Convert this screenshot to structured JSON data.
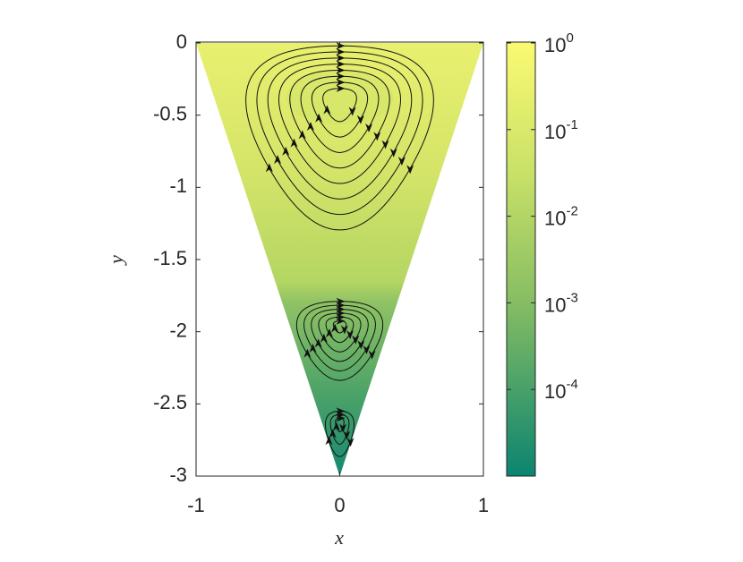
{
  "chart_data": {
    "type": "streamline",
    "x_label": "x",
    "y_label": "y",
    "xlim": [
      -1,
      1
    ],
    "xticks": [
      -1,
      0,
      1
    ],
    "ylim": [
      -3,
      0
    ],
    "yticks": [
      0,
      -0.5,
      -1,
      -1.5,
      -2,
      -2.5,
      -3
    ],
    "colorbar": {
      "scale": "log",
      "clim": [
        1e-05,
        1
      ],
      "ticks": [
        {
          "value": 1,
          "label": "10",
          "exponent": "0"
        },
        {
          "value": 0.1,
          "label": "10",
          "exponent": "-1"
        },
        {
          "value": 0.01,
          "label": "10",
          "exponent": "-2"
        },
        {
          "value": 0.001,
          "label": "10",
          "exponent": "-3"
        },
        {
          "value": 0.0001,
          "label": "10",
          "exponent": "-4"
        }
      ]
    }
  }
}
